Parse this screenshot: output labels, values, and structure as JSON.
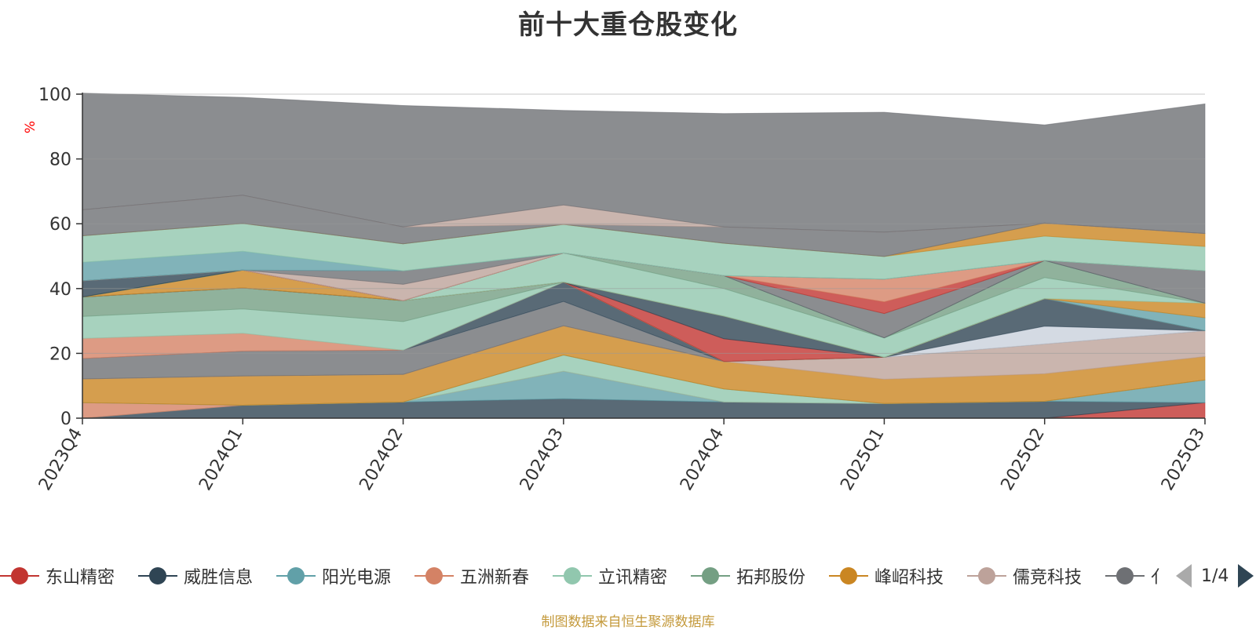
{
  "chart_data": {
    "type": "area",
    "title": "前十大重仓股变化",
    "ylabel": "%",
    "ylim": [
      0,
      100
    ],
    "yticks": [
      0,
      20,
      40,
      60,
      80,
      100
    ],
    "categories": [
      "2023Q4",
      "2024Q1",
      "2024Q2",
      "2024Q3",
      "2024Q4",
      "2025Q1",
      "2025Q2",
      "2025Q3"
    ],
    "grid": true,
    "legend_position": "bottom",
    "series": [
      {
        "name": "东山精密",
        "color": "#c23531",
        "values": [
          0,
          0,
          0,
          0,
          0,
          0,
          0,
          4.8
        ]
      },
      {
        "name": "威胜信息",
        "color": "#2f4554",
        "values": [
          0,
          4,
          5,
          6,
          5,
          4.5,
          5.2,
          0
        ]
      },
      {
        "name": "阳光电源",
        "color": "#61a0a8",
        "values": [
          0,
          0,
          0,
          8.5,
          0,
          0,
          0,
          7
        ]
      },
      {
        "name": "五洲新春",
        "color": "#d48265",
        "values": [
          4.8,
          0,
          0,
          0,
          0,
          0,
          0,
          0
        ]
      },
      {
        "name": "立讯精密",
        "color": "#91c7ae",
        "values": [
          0,
          0,
          0,
          5,
          4,
          0,
          0,
          0
        ]
      },
      {
        "name": "拓邦股份",
        "color": "#749f83",
        "values": [
          0,
          0,
          0,
          0,
          0,
          0,
          0,
          0
        ]
      },
      {
        "name": "峰岹科技",
        "color": "#ca8622",
        "values": [
          7.3,
          9,
          8.5,
          9,
          8.5,
          7.5,
          8.5,
          7.2
        ]
      },
      {
        "name": "儒竞科技",
        "color": "#bda29a",
        "values": [
          0,
          0,
          0,
          0,
          0,
          6.8,
          9.2,
          8
        ]
      },
      {
        "name": "",
        "color": "#6e7074",
        "values": [
          6.3,
          7.7,
          7.5,
          7.5,
          0,
          0,
          0,
          0
        ]
      },
      {
        "name": "",
        "color": "#c9d1dc",
        "values": [
          0,
          0,
          0,
          0,
          0,
          0,
          5.5,
          0
        ]
      },
      {
        "name": "",
        "color": "#2f4554",
        "values": [
          0,
          0,
          0,
          6,
          0,
          0,
          8.5,
          0
        ]
      },
      {
        "name": "",
        "color": "#d48265",
        "values": [
          6.2,
          5.5,
          0,
          0,
          0,
          0,
          0,
          0
        ]
      },
      {
        "name": "",
        "color": "#91c7ae",
        "values": [
          6.8,
          7.5,
          8.8,
          0,
          0,
          0,
          0,
          0
        ]
      },
      {
        "name": "",
        "color": "#749f83",
        "values": [
          6,
          6.5,
          6.5,
          0,
          0,
          0,
          0,
          0
        ]
      },
      {
        "name": "",
        "color": "#c23531",
        "values": [
          0,
          0,
          0,
          0,
          7,
          0,
          0,
          0
        ]
      },
      {
        "name": "",
        "color": "#2f4554",
        "values": [
          0,
          0,
          0,
          0,
          7,
          0,
          0,
          0
        ]
      },
      {
        "name": "",
        "color": "#61a0a8",
        "values": [
          0,
          0,
          0,
          0,
          0,
          0,
          0,
          4
        ]
      },
      {
        "name": "",
        "color": "#ca8622",
        "values": [
          0,
          5.5,
          0,
          0,
          0,
          0,
          0,
          4.5
        ]
      },
      {
        "name": "",
        "color": "#91c7ae",
        "values": [
          0,
          0,
          0,
          9,
          8.5,
          6,
          6.5,
          0
        ]
      },
      {
        "name": "",
        "color": "#749f83",
        "values": [
          0,
          0,
          0,
          0,
          4,
          0,
          5.3,
          0
        ]
      },
      {
        "name": "",
        "color": "#2f4554",
        "values": [
          5,
          0,
          0,
          0,
          0,
          0,
          0,
          0
        ]
      },
      {
        "name": "",
        "color": "#6e7074",
        "values": [
          0,
          0,
          0,
          0,
          0,
          7.5,
          0,
          10
        ]
      },
      {
        "name": "",
        "color": "#c23531",
        "values": [
          0,
          0,
          0,
          0,
          0,
          3.6,
          0,
          0
        ]
      },
      {
        "name": "",
        "color": "#d48265",
        "values": [
          0,
          0,
          0,
          0,
          0,
          7,
          0,
          0
        ]
      },
      {
        "name": "",
        "color": "#bda29a",
        "values": [
          0,
          0,
          5,
          0,
          0,
          0,
          0,
          0
        ]
      },
      {
        "name": "",
        "color": "#6e7074",
        "values": [
          0,
          0,
          4.2,
          0,
          0,
          0,
          0,
          0
        ]
      },
      {
        "name": "",
        "color": "#61a0a8",
        "values": [
          5.7,
          5.8,
          0,
          0,
          0,
          0,
          0,
          0
        ]
      },
      {
        "name": "",
        "color": "#91c7ae",
        "values": [
          8.2,
          8.6,
          8.3,
          8.8,
          10,
          7,
          7.5,
          7.5
        ]
      },
      {
        "name": "",
        "color": "#ca8622",
        "values": [
          0,
          0,
          0,
          0,
          0,
          0,
          4,
          4
        ]
      },
      {
        "name": "",
        "color": "#6e7074",
        "values": [
          8,
          8.7,
          5.2,
          0,
          5,
          7.5,
          0,
          0
        ]
      },
      {
        "name": "",
        "color": "#bda29a",
        "values": [
          0,
          0,
          0,
          6,
          0,
          0,
          0,
          0
        ]
      },
      {
        "name": "",
        "color": "#6e7074",
        "values": [
          36,
          30.2,
          37.5,
          29.2,
          35,
          37,
          30.3,
          40
        ]
      }
    ]
  },
  "legend": {
    "items": [
      {
        "label": "东山精密",
        "color": "#c23531"
      },
      {
        "label": "威胜信息",
        "color": "#2f4554"
      },
      {
        "label": "阳光电源",
        "color": "#61a0a8"
      },
      {
        "label": "五洲新春",
        "color": "#d48265"
      },
      {
        "label": "立讯精密",
        "color": "#91c7ae"
      },
      {
        "label": "拓邦股份",
        "color": "#749f83"
      },
      {
        "label": "峰岹科技",
        "color": "#ca8622"
      },
      {
        "label": "儒竞科技",
        "color": "#bda29a"
      },
      {
        "label": "亻",
        "color": "#6e7074"
      }
    ],
    "page": "1/4"
  },
  "source_note": "制图数据来自恒生聚源数据库",
  "colors": {
    "ylabel": "#ff0000",
    "axis": "#333333",
    "grid": "#999999",
    "source_note": "#c49a3c"
  }
}
